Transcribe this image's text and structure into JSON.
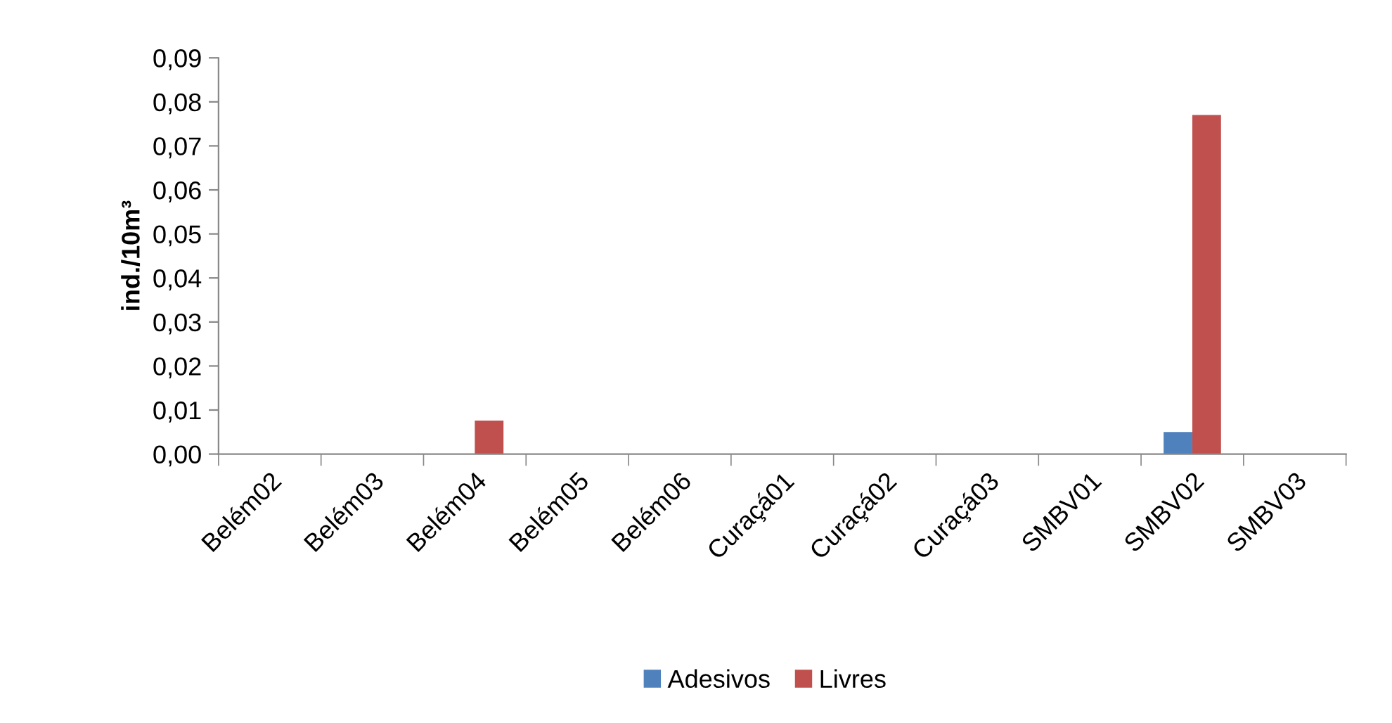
{
  "chart_data": {
    "type": "bar",
    "ylabel": "ind./10m³",
    "categories": [
      "Belém02",
      "Belém03",
      "Belém04",
      "Belém05",
      "Belém06",
      "Curaçá01",
      "Curaçá02",
      "Curaçá03",
      "SMBV01",
      "SMBV02",
      "SMBV03"
    ],
    "series": [
      {
        "name": "Adesivos",
        "color": "#4f81bd",
        "values": [
          0,
          0,
          0,
          0,
          0,
          0,
          0,
          0,
          0,
          0.005,
          0
        ]
      },
      {
        "name": "Livres",
        "color": "#c0504d",
        "values": [
          0,
          0,
          0.0076,
          0,
          0,
          0,
          0,
          0,
          0,
          0.077,
          0
        ]
      }
    ],
    "ylim": [
      0,
      0.09
    ],
    "yticks": [
      {
        "value": 0,
        "label": "0,00"
      },
      {
        "value": 0.01,
        "label": "0,01"
      },
      {
        "value": 0.02,
        "label": "0,02"
      },
      {
        "value": 0.03,
        "label": "0,03"
      },
      {
        "value": 0.04,
        "label": "0,04"
      },
      {
        "value": 0.05,
        "label": "0,05"
      },
      {
        "value": 0.06,
        "label": "0,06"
      },
      {
        "value": 0.07,
        "label": "0,07"
      },
      {
        "value": 0.08,
        "label": "0,08"
      },
      {
        "value": 0.09,
        "label": "0,09"
      }
    ],
    "grid": false,
    "legend": "bottom"
  }
}
